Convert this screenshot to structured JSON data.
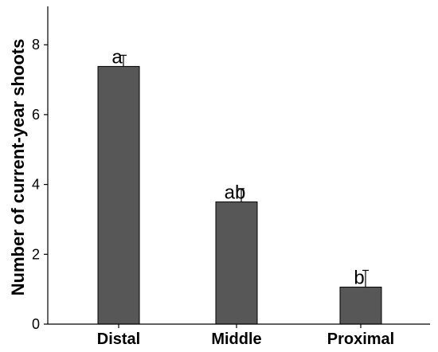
{
  "chart_data": {
    "type": "bar",
    "title": "",
    "xlabel": "",
    "ylabel": "Number of current-year shoots",
    "ylim": [
      0,
      9.1
    ],
    "yticks": [
      0,
      2,
      4,
      6,
      8
    ],
    "categories": [
      "Distal",
      "Middle",
      "Proximal"
    ],
    "values": [
      7.38,
      3.5,
      1.06
    ],
    "errors": [
      0.32,
      0.38,
      0.48
    ],
    "significance_labels": [
      "a",
      "ab",
      "b"
    ],
    "bar_color": "#575757",
    "grid": false,
    "legend": "none"
  }
}
